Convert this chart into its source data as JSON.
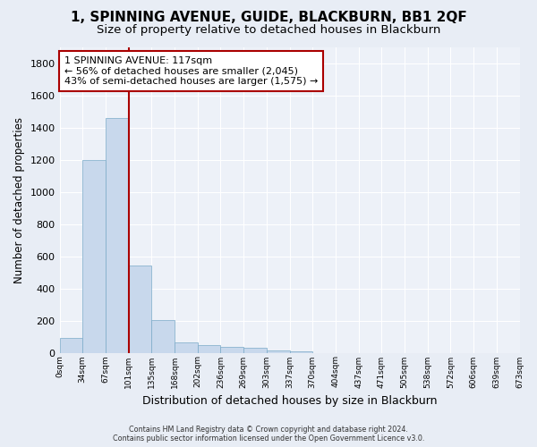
{
  "title": "1, SPINNING AVENUE, GUIDE, BLACKBURN, BB1 2QF",
  "subtitle": "Size of property relative to detached houses in Blackburn",
  "xlabel": "Distribution of detached houses by size in Blackburn",
  "ylabel": "Number of detached properties",
  "footer1": "Contains HM Land Registry data © Crown copyright and database right 2024.",
  "footer2": "Contains public sector information licensed under the Open Government Licence v3.0.",
  "bar_values": [
    90,
    1200,
    1460,
    540,
    205,
    65,
    45,
    35,
    28,
    15,
    8,
    0,
    0,
    0,
    0,
    0,
    0,
    0,
    0,
    0
  ],
  "bar_labels": [
    "0sqm",
    "34sqm",
    "67sqm",
    "101sqm",
    "135sqm",
    "168sqm",
    "202sqm",
    "236sqm",
    "269sqm",
    "303sqm",
    "337sqm",
    "370sqm",
    "404sqm",
    "437sqm",
    "471sqm",
    "505sqm",
    "538sqm",
    "572sqm",
    "606sqm",
    "639sqm",
    "673sqm"
  ],
  "bar_color": "#c8d8ec",
  "bar_edge_color": "#7aaac8",
  "vline_x": 3.0,
  "vline_color": "#aa0000",
  "annotation_text": "1 SPINNING AVENUE: 117sqm\n← 56% of detached houses are smaller (2,045)\n43% of semi-detached houses are larger (1,575) →",
  "annotation_box_color": "#ffffff",
  "annotation_box_edge_color": "#aa0000",
  "ylim": [
    0,
    1900
  ],
  "bg_color": "#e8edf5",
  "plot_bg_color": "#edf1f8",
  "grid_color": "#ffffff",
  "title_fontsize": 11,
  "subtitle_fontsize": 9.5
}
